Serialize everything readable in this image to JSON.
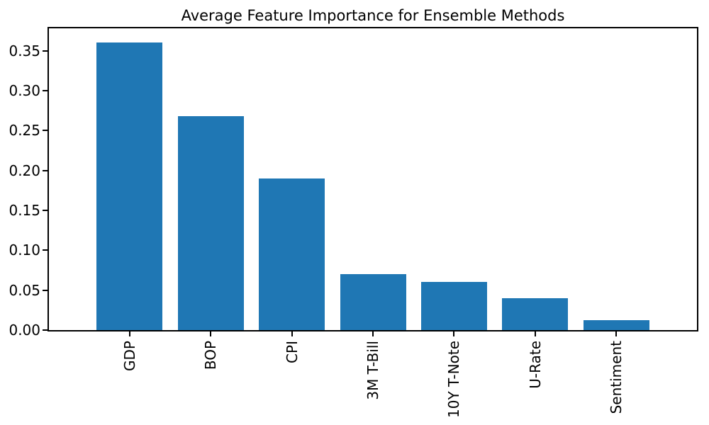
{
  "chart_data": {
    "type": "bar",
    "title": "Average Feature Importance for Ensemble Methods",
    "categories": [
      "GDP",
      "BOP",
      "CPI",
      "3M T-Bill",
      "10Y T-Note",
      "U-Rate",
      "Sentiment"
    ],
    "values": [
      0.36,
      0.268,
      0.19,
      0.07,
      0.06,
      0.04,
      0.012
    ],
    "xlabel": "",
    "ylabel": "",
    "ylim": [
      0,
      0.378
    ],
    "yticks": [
      0.0,
      0.05,
      0.1,
      0.15,
      0.2,
      0.25,
      0.3,
      0.35
    ],
    "ytick_labels": [
      "0.00",
      "0.05",
      "0.10",
      "0.15",
      "0.20",
      "0.25",
      "0.30",
      "0.35"
    ],
    "x_tick_rotation": 90,
    "bar_color": "#1f77b4",
    "grid": false,
    "legend": null,
    "background_color": "#ffffff",
    "spine_color": "#000000"
  }
}
